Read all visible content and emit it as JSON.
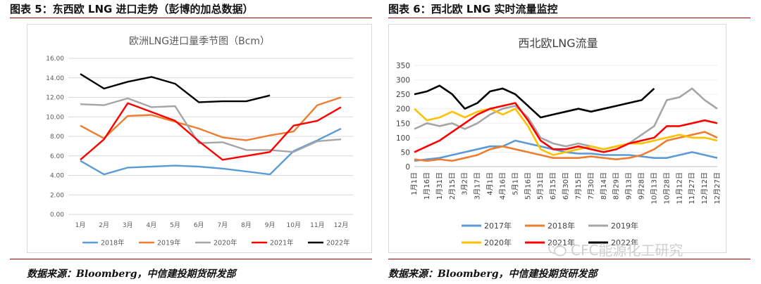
{
  "left": {
    "fig_title": "图表 5：东西欧 LNG 进口走势（彭博的加总数据）",
    "source": "数据来源：Bloomberg，中信建投期货研发部"
  },
  "right": {
    "fig_title": "图表 6：西北欧 LNG 实时流量监控",
    "source": "数据来源：Bloomberg，中信建投期货研发部"
  },
  "watermark": "CFC能源化工研究",
  "chart_data": [
    {
      "type": "line",
      "title": "欧洲LNG进口量季节图（Bcm）",
      "categories": [
        "1月",
        "2月",
        "3月",
        "4月",
        "5月",
        "6月",
        "7月",
        "8月",
        "9月",
        "10月",
        "11月",
        "12月"
      ],
      "ylim": [
        0,
        16
      ],
      "yticks": [
        "0.00",
        "2.00",
        "4.00",
        "6.00",
        "8.00",
        "10.00",
        "12.00",
        "14.00",
        "16.00"
      ],
      "legend_position": "bottom",
      "series": [
        {
          "name": "2018年",
          "color": "#5b9bd5",
          "values": [
            5.5,
            4.1,
            4.8,
            4.9,
            5.0,
            4.9,
            4.7,
            4.4,
            4.1,
            6.5,
            7.6,
            8.8
          ]
        },
        {
          "name": "2019年",
          "color": "#ed7d31",
          "values": [
            9.1,
            7.8,
            10.1,
            10.2,
            9.5,
            8.8,
            7.9,
            7.6,
            8.1,
            8.5,
            11.2,
            12.0
          ]
        },
        {
          "name": "2020年",
          "color": "#a5a5a5",
          "values": [
            11.3,
            11.2,
            11.9,
            11.0,
            11.1,
            7.3,
            7.4,
            6.6,
            6.6,
            6.4,
            7.5,
            7.7
          ]
        },
        {
          "name": "2021年",
          "color": "#ff0000",
          "values": [
            5.6,
            7.7,
            11.4,
            10.5,
            9.6,
            7.5,
            5.6,
            6.0,
            6.4,
            9.1,
            9.6,
            11.0
          ]
        },
        {
          "name": "2022年",
          "color": "#000000",
          "values": [
            14.4,
            12.9,
            13.6,
            14.1,
            13.4,
            11.5,
            11.6,
            11.6,
            12.2,
            null,
            null,
            null
          ]
        }
      ]
    },
    {
      "type": "line",
      "title": "西北欧LNG流量",
      "ylim": [
        0,
        350
      ],
      "yticks": [
        "0",
        "50",
        "100",
        "150",
        "200",
        "250",
        "300",
        "350"
      ],
      "xticks": [
        "1月1日",
        "1月16日",
        "1月31日",
        "2月15日",
        "3月2日",
        "3月17日",
        "4月1日",
        "4月16日",
        "5月1日",
        "5月16日",
        "5月31日",
        "6月15日",
        "6月30日",
        "7月15日",
        "7月30日",
        "8月14日",
        "8月29日",
        "9月13日",
        "9月28日",
        "10月13日",
        "10月28日",
        "11月12日",
        "11月27日",
        "12月12日",
        "12月27日"
      ],
      "legend_position": "bottom",
      "series": [
        {
          "name": "2017年",
          "color": "#5b9bd5",
          "values": [
            20,
            25,
            30,
            40,
            50,
            60,
            70,
            70,
            90,
            80,
            70,
            60,
            50,
            45,
            45,
            40,
            40,
            40,
            35,
            30,
            30,
            40,
            50,
            40,
            30
          ]
        },
        {
          "name": "2018年",
          "color": "#ed7d31",
          "values": [
            25,
            20,
            25,
            20,
            30,
            40,
            60,
            70,
            60,
            50,
            40,
            30,
            30,
            30,
            35,
            30,
            25,
            30,
            40,
            60,
            90,
            100,
            110,
            120,
            100
          ]
        },
        {
          "name": "2019年",
          "color": "#a5a5a5",
          "values": [
            130,
            150,
            140,
            150,
            130,
            150,
            180,
            200,
            210,
            170,
            100,
            80,
            70,
            80,
            70,
            60,
            70,
            80,
            110,
            140,
            230,
            240,
            270,
            230,
            200
          ]
        },
        {
          "name": "2020年",
          "color": "#ffc000",
          "values": [
            200,
            160,
            170,
            190,
            170,
            190,
            200,
            180,
            200,
            140,
            60,
            40,
            50,
            60,
            70,
            60,
            70,
            80,
            80,
            90,
            100,
            110,
            100,
            100,
            90
          ]
        },
        {
          "name": "2021年",
          "color": "#ff0000",
          "values": [
            50,
            70,
            90,
            120,
            150,
            180,
            200,
            210,
            220,
            160,
            90,
            60,
            60,
            70,
            60,
            50,
            60,
            80,
            90,
            100,
            140,
            140,
            150,
            160,
            150
          ]
        },
        {
          "name": "2022年",
          "color": "#000000",
          "values": [
            250,
            260,
            280,
            250,
            200,
            220,
            260,
            270,
            250,
            210,
            170,
            180,
            190,
            200,
            190,
            200,
            210,
            220,
            230,
            270,
            null,
            null,
            null,
            null,
            null
          ]
        }
      ]
    }
  ]
}
